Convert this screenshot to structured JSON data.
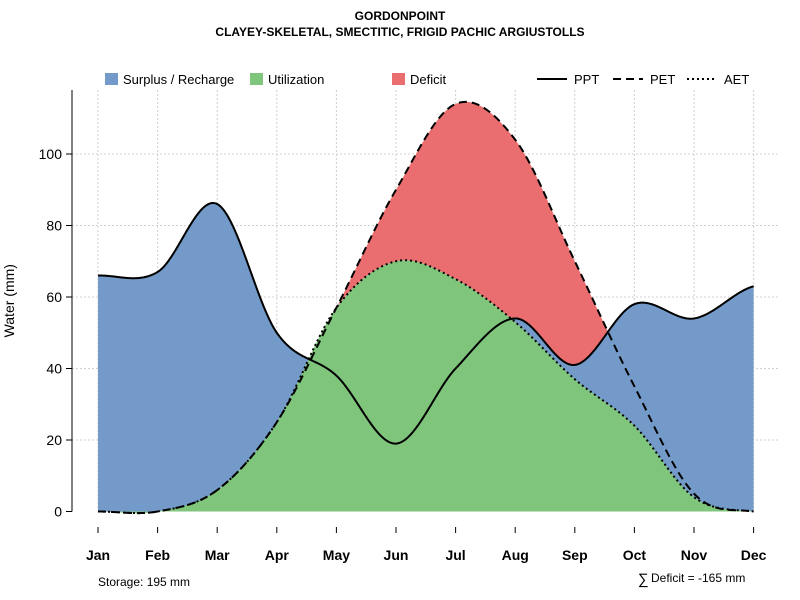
{
  "chart_data": {
    "type": "area",
    "title": "GORDONPOINT",
    "subtitle": "CLAYEY-SKELETAL, SMECTITIC, FRIGID PACHIC ARGIUSTOLLS",
    "xlabel": "",
    "ylabel": "Water (mm)",
    "ylim": [
      0,
      118
    ],
    "yticks": [
      0,
      20,
      40,
      60,
      80,
      100
    ],
    "categories": [
      "Jan",
      "Feb",
      "Mar",
      "Apr",
      "May",
      "Jun",
      "Jul",
      "Aug",
      "Sep",
      "Oct",
      "Nov",
      "Dec"
    ],
    "series": [
      {
        "name": "PPT",
        "style": "solid",
        "values": [
          66,
          67,
          86,
          50,
          38,
          19,
          40,
          54,
          41,
          58,
          54,
          63
        ]
      },
      {
        "name": "PET",
        "style": "dashed",
        "values": [
          0,
          0,
          6,
          25,
          57,
          90,
          114,
          104,
          70,
          35,
          5,
          0
        ]
      },
      {
        "name": "AET",
        "style": "dotted",
        "values": [
          0,
          0,
          6,
          25,
          57,
          70,
          65,
          53,
          37,
          24,
          4,
          0
        ]
      }
    ],
    "legend": {
      "position": "top",
      "fill_entries": [
        {
          "label": "Surplus / Recharge",
          "color": "#739ac8"
        },
        {
          "label": "Utilization",
          "color": "#80c57c"
        },
        {
          "label": "Deficit",
          "color": "#ea6e6f"
        }
      ],
      "line_entries": [
        "PPT",
        "PET",
        "AET"
      ]
    },
    "grid": true,
    "colors": {
      "surplus": "#739ac8",
      "utilization": "#80c57c",
      "deficit": "#ea6e6f",
      "line": "#000000",
      "grid": "#d0d0d0"
    },
    "annotations": {
      "storage": "Storage: 195 mm",
      "deficit_symbol": "∑",
      "deficit": "Deficit = -165 mm"
    }
  }
}
